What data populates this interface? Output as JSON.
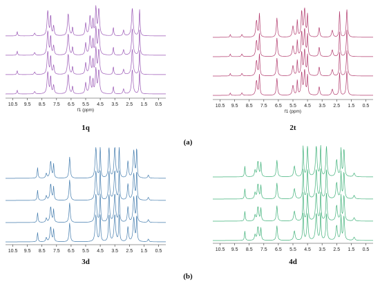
{
  "figure": {
    "caption_a": "(a)",
    "caption_b": "(b)"
  },
  "chart_data": [
    {
      "type": "line",
      "label": "1q",
      "color": "#8e44ad",
      "xlabel": "f1 (ppm)",
      "x_reversed": true,
      "xlim": [
        0.0,
        11.0
      ],
      "x_ticks": [
        "10.5",
        "9.5",
        "8.5",
        "7.5",
        "6.5",
        "5.5",
        "4.5",
        "3.5",
        "2.5",
        "1.5",
        "0.5"
      ],
      "stacked_traces": 4,
      "peaks_ppm": [
        {
          "x": 10.2,
          "h": 0.15
        },
        {
          "x": 9.0,
          "h": 0.1
        },
        {
          "x": 8.1,
          "h": 0.9
        },
        {
          "x": 7.9,
          "h": 0.7
        },
        {
          "x": 7.7,
          "h": 0.35
        },
        {
          "x": 6.7,
          "h": 0.8
        },
        {
          "x": 6.4,
          "h": 0.3
        },
        {
          "x": 5.5,
          "h": 0.45
        },
        {
          "x": 5.2,
          "h": 0.7
        },
        {
          "x": 5.0,
          "h": 0.55
        },
        {
          "x": 4.8,
          "h": 1.0
        },
        {
          "x": 4.6,
          "h": 0.95
        },
        {
          "x": 3.6,
          "h": 0.3
        },
        {
          "x": 2.9,
          "h": 0.2
        },
        {
          "x": 2.3,
          "h": 1.0
        },
        {
          "x": 1.8,
          "h": 0.95
        }
      ]
    },
    {
      "type": "line",
      "label": "2t",
      "color": "#a8245c",
      "xlabel": "f1 (ppm)",
      "x_reversed": true,
      "xlim": [
        0.0,
        11.0
      ],
      "x_ticks": [
        "10.5",
        "9.5",
        "8.5",
        "7.5",
        "6.5",
        "5.5",
        "4.5",
        "3.5",
        "2.5",
        "1.5",
        "0.5"
      ],
      "stacked_traces": 4,
      "peaks_ppm": [
        {
          "x": 9.8,
          "h": 0.1
        },
        {
          "x": 9.0,
          "h": 0.1
        },
        {
          "x": 8.0,
          "h": 0.6
        },
        {
          "x": 7.8,
          "h": 0.85
        },
        {
          "x": 6.6,
          "h": 0.7
        },
        {
          "x": 5.5,
          "h": 0.4
        },
        {
          "x": 5.2,
          "h": 0.6
        },
        {
          "x": 4.9,
          "h": 0.9
        },
        {
          "x": 4.7,
          "h": 1.0
        },
        {
          "x": 4.5,
          "h": 0.8
        },
        {
          "x": 3.7,
          "h": 0.35
        },
        {
          "x": 2.8,
          "h": 0.25
        },
        {
          "x": 2.3,
          "h": 0.95
        },
        {
          "x": 1.8,
          "h": 1.0
        }
      ]
    },
    {
      "type": "line",
      "label": "3d",
      "color": "#2e6da4",
      "xlabel": "f1 (ppm)",
      "x_reversed": true,
      "xlim": [
        0.0,
        11.0
      ],
      "x_ticks": [
        "10.5",
        "9.5",
        "8.5",
        "7.5",
        "6.5",
        "5.5",
        "4.5",
        "3.5",
        "2.5",
        "1.5",
        "0.5"
      ],
      "stacked_traces": 4,
      "peaks_ppm": [
        {
          "x": 8.8,
          "h": 0.35
        },
        {
          "x": 8.2,
          "h": 0.15
        },
        {
          "x": 7.9,
          "h": 0.55
        },
        {
          "x": 7.7,
          "h": 0.45
        },
        {
          "x": 6.6,
          "h": 0.7
        },
        {
          "x": 4.8,
          "h": 1.0
        },
        {
          "x": 4.5,
          "h": 1.0
        },
        {
          "x": 3.9,
          "h": 1.0
        },
        {
          "x": 3.5,
          "h": 1.0
        },
        {
          "x": 3.2,
          "h": 1.0
        },
        {
          "x": 2.6,
          "h": 0.55
        },
        {
          "x": 2.2,
          "h": 0.9
        },
        {
          "x": 2.0,
          "h": 0.95
        },
        {
          "x": 1.2,
          "h": 0.1
        }
      ]
    },
    {
      "type": "line",
      "label": "4d",
      "color": "#2aa86a",
      "xlabel": "f1 (ppm)",
      "x_reversed": true,
      "xlim": [
        0.0,
        11.0
      ],
      "x_ticks": [
        "10.5",
        "9.5",
        "8.5",
        "7.5",
        "6.5",
        "5.5",
        "4.5",
        "3.5",
        "2.5",
        "1.5",
        "0.5"
      ],
      "stacked_traces": 4,
      "peaks_ppm": [
        {
          "x": 8.8,
          "h": 0.35
        },
        {
          "x": 8.1,
          "h": 0.2
        },
        {
          "x": 7.9,
          "h": 0.5
        },
        {
          "x": 7.7,
          "h": 0.45
        },
        {
          "x": 6.6,
          "h": 0.55
        },
        {
          "x": 5.4,
          "h": 0.35
        },
        {
          "x": 4.8,
          "h": 1.0
        },
        {
          "x": 4.5,
          "h": 1.0
        },
        {
          "x": 3.9,
          "h": 1.0
        },
        {
          "x": 3.6,
          "h": 1.0
        },
        {
          "x": 3.2,
          "h": 1.0
        },
        {
          "x": 2.5,
          "h": 0.55
        },
        {
          "x": 2.2,
          "h": 0.9
        },
        {
          "x": 2.0,
          "h": 0.9
        },
        {
          "x": 1.3,
          "h": 0.12
        }
      ]
    }
  ]
}
